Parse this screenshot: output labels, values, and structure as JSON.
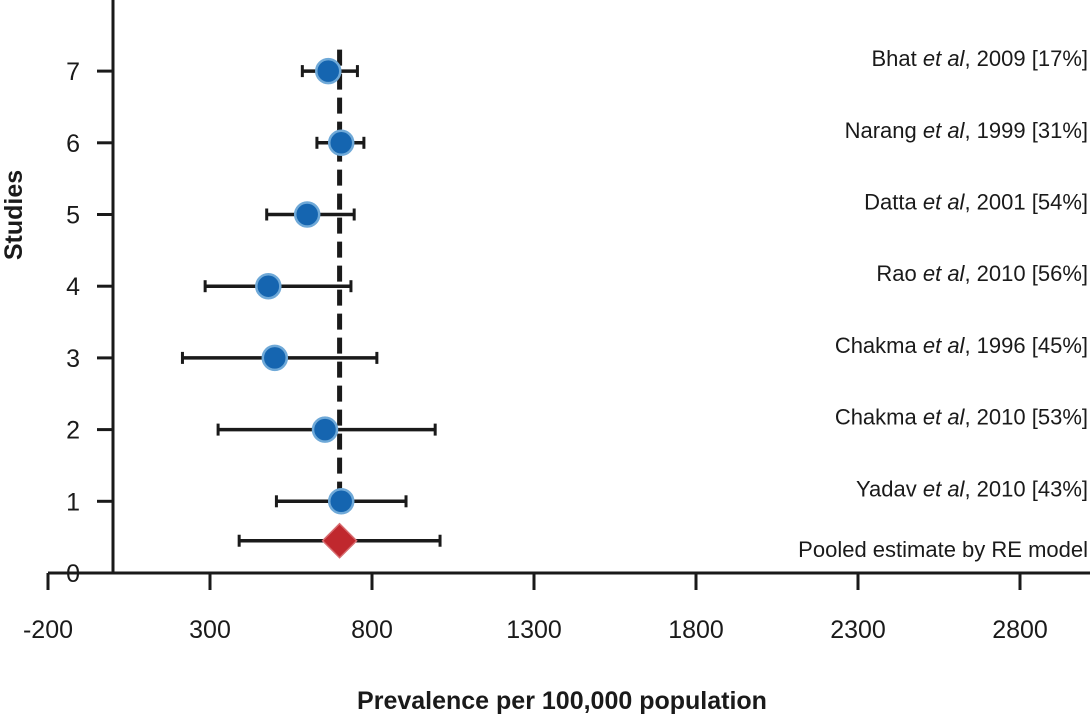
{
  "chart_data": {
    "type": "forest",
    "xlabel": "Prevalence per 100,000 population",
    "ylabel": "Studies",
    "xlim": [
      -200,
      3100
    ],
    "ylim": [
      0,
      8
    ],
    "x_ticks": [
      "-200",
      "300",
      "800",
      "1300",
      "1800",
      "2300",
      "2800"
    ],
    "x_tick_values": [
      -200,
      300,
      800,
      1300,
      1800,
      2300,
      2800
    ],
    "y_ticks": [
      "0",
      "1",
      "2",
      "3",
      "4",
      "5",
      "6",
      "7"
    ],
    "y_tick_values": [
      0,
      1,
      2,
      3,
      4,
      5,
      6,
      7
    ],
    "pooled_reference_x": 700,
    "studies": [
      {
        "y": 7,
        "author": "Bhat ",
        "etal": "et al",
        "rest": ", 2009 [17%]",
        "estimate": 665,
        "lower": 585,
        "upper": 755
      },
      {
        "y": 6,
        "author": "Narang ",
        "etal": "et al",
        "rest": ", 1999 [31%]",
        "estimate": 705,
        "lower": 630,
        "upper": 775
      },
      {
        "y": 5,
        "author": "Datta ",
        "etal": "et al",
        "rest": ", 2001 [54%]",
        "estimate": 600,
        "lower": 475,
        "upper": 745
      },
      {
        "y": 4,
        "author": "Rao ",
        "etal": "et al",
        "rest": ", 2010 [56%]",
        "estimate": 480,
        "lower": 285,
        "upper": 735
      },
      {
        "y": 3,
        "author": "Chakma ",
        "etal": "et al",
        "rest": ", 1996 [45%]",
        "estimate": 500,
        "lower": 215,
        "upper": 815
      },
      {
        "y": 2,
        "author": "Chakma ",
        "etal": "et al",
        "rest": ", 2010 [53%]",
        "estimate": 655,
        "lower": 325,
        "upper": 995
      },
      {
        "y": 1,
        "author": "Yadav ",
        "etal": "et al",
        "rest": ", 2010 [43%]",
        "estimate": 705,
        "lower": 505,
        "upper": 905
      }
    ],
    "pooled": {
      "y": 0.45,
      "label": "Pooled estimate by RE model",
      "estimate": 700,
      "lower": 390,
      "upper": 1010
    }
  }
}
